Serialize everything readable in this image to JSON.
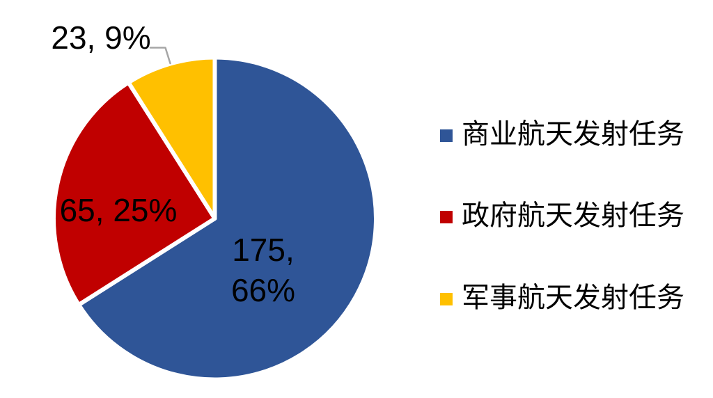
{
  "chart_data": {
    "type": "pie",
    "title": "",
    "direction": "clockwise",
    "start_angle_deg": 0,
    "legend_position": "right",
    "slices": [
      {
        "label": "商业航天发射任务",
        "value": 175,
        "percent": 66,
        "color": "#2F5597",
        "data_label": "175, 66%",
        "label_lines": [
          "175,",
          "66%"
        ]
      },
      {
        "label": "政府航天发射任务",
        "value": 65,
        "percent": 25,
        "color": "#C00000",
        "data_label": "65, 25%",
        "label_lines": [
          "65, 25%"
        ]
      },
      {
        "label": "军事航天发射任务",
        "value": 23,
        "percent": 9,
        "color": "#FFC000",
        "data_label": "23, 9%",
        "label_lines": [
          "23, 9%"
        ]
      }
    ],
    "colors": {
      "label_text": "#000000",
      "leader_line": "#A6A6A6",
      "slice_border": "#FFFFFF",
      "background": "#FFFFFF"
    }
  }
}
